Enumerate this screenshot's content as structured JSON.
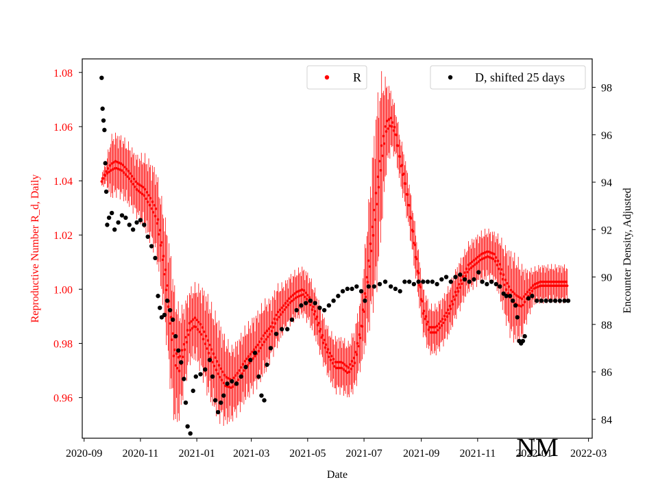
{
  "chart_data": {
    "type": "scatter",
    "xlabel": "Date",
    "ylabel_left": "Reproductive Number R_d, Daily",
    "ylabel_right": "Encounter Density, Adjusted",
    "x_range": [
      "2020-08-30",
      "2022-03-05"
    ],
    "y_left_range": [
      0.945,
      1.085
    ],
    "y_right_range": [
      83.2,
      99.2
    ],
    "x_ticks": [
      "2020-09",
      "2020-11",
      "2021-01",
      "2021-03",
      "2021-05",
      "2021-07",
      "2021-09",
      "2021-11",
      "2022-01",
      "2022-03"
    ],
    "y_left_ticks": [
      "0.96",
      "0.98",
      "1.00",
      "1.02",
      "1.04",
      "1.06",
      "1.08"
    ],
    "y_right_ticks": [
      "84",
      "86",
      "88",
      "90",
      "92",
      "94",
      "96",
      "98"
    ],
    "legend": [
      {
        "label": "R",
        "color": "#ff0000",
        "placement": "upper-center"
      },
      {
        "label": "D, shifted 25 days",
        "color": "#000000",
        "placement": "upper-right"
      }
    ],
    "annotation": "NM",
    "series_R": {
      "name": "R",
      "color": "#ff0000",
      "axis": "left",
      "points": [
        [
          "2020-09-20",
          1.04,
          0.002
        ],
        [
          "2020-09-25",
          1.043,
          0.004
        ],
        [
          "2020-09-30",
          1.045,
          0.01
        ],
        [
          "2020-10-05",
          1.046,
          0.01
        ],
        [
          "2020-10-12",
          1.045,
          0.01
        ],
        [
          "2020-10-20",
          1.042,
          0.01
        ],
        [
          "2020-10-28",
          1.038,
          0.01
        ],
        [
          "2020-11-05",
          1.036,
          0.012
        ],
        [
          "2020-11-12",
          1.032,
          0.013
        ],
        [
          "2020-11-18",
          1.028,
          0.014
        ],
        [
          "2020-11-23",
          1.018,
          0.015
        ],
        [
          "2020-11-28",
          1.005,
          0.018
        ],
        [
          "2020-12-03",
          0.99,
          0.022
        ],
        [
          "2020-12-08",
          0.975,
          0.022
        ],
        [
          "2020-12-13",
          0.972,
          0.018
        ],
        [
          "2020-12-18",
          0.978,
          0.014
        ],
        [
          "2020-12-24",
          0.986,
          0.012
        ],
        [
          "2020-12-30",
          0.988,
          0.012
        ],
        [
          "2021-01-06",
          0.985,
          0.014
        ],
        [
          "2021-01-12",
          0.98,
          0.016
        ],
        [
          "2021-01-18",
          0.975,
          0.016
        ],
        [
          "2021-01-25",
          0.97,
          0.016
        ],
        [
          "2021-02-01",
          0.966,
          0.014
        ],
        [
          "2021-02-08",
          0.965,
          0.012
        ],
        [
          "2021-02-15",
          0.968,
          0.012
        ],
        [
          "2021-02-22",
          0.972,
          0.012
        ],
        [
          "2021-03-01",
          0.975,
          0.012
        ],
        [
          "2021-03-08",
          0.978,
          0.012
        ],
        [
          "2021-03-15",
          0.982,
          0.012
        ],
        [
          "2021-03-22",
          0.985,
          0.01
        ],
        [
          "2021-03-29",
          0.99,
          0.01
        ],
        [
          "2021-04-05",
          0.993,
          0.008
        ],
        [
          "2021-04-12",
          0.996,
          0.008
        ],
        [
          "2021-04-19",
          0.998,
          0.008
        ],
        [
          "2021-04-26",
          0.999,
          0.008
        ],
        [
          "2021-05-03",
          0.996,
          0.008
        ],
        [
          "2021-05-10",
          0.99,
          0.008
        ],
        [
          "2021-05-17",
          0.982,
          0.008
        ],
        [
          "2021-05-24",
          0.976,
          0.008
        ],
        [
          "2021-05-31",
          0.972,
          0.009
        ],
        [
          "2021-06-07",
          0.972,
          0.009
        ],
        [
          "2021-06-14",
          0.97,
          0.009
        ],
        [
          "2021-06-21",
          0.974,
          0.01
        ],
        [
          "2021-06-28",
          0.985,
          0.012
        ],
        [
          "2021-07-05",
          1.005,
          0.02
        ],
        [
          "2021-07-10",
          1.02,
          0.025
        ],
        [
          "2021-07-15",
          1.035,
          0.03
        ],
        [
          "2021-07-20",
          1.05,
          0.025
        ],
        [
          "2021-07-25",
          1.06,
          0.015
        ],
        [
          "2021-07-30",
          1.062,
          0.01
        ],
        [
          "2021-08-04",
          1.058,
          0.008
        ],
        [
          "2021-08-09",
          1.048,
          0.008
        ],
        [
          "2021-08-14",
          1.04,
          0.008
        ],
        [
          "2021-08-19",
          1.03,
          0.008
        ],
        [
          "2021-08-24",
          1.018,
          0.008
        ],
        [
          "2021-08-29",
          1.005,
          0.008
        ],
        [
          "2021-09-03",
          0.992,
          0.008
        ],
        [
          "2021-09-10",
          0.985,
          0.008
        ],
        [
          "2021-09-17",
          0.985,
          0.008
        ],
        [
          "2021-09-24",
          0.988,
          0.008
        ],
        [
          "2021-10-01",
          0.992,
          0.008
        ],
        [
          "2021-10-08",
          0.998,
          0.008
        ],
        [
          "2021-10-15",
          1.003,
          0.008
        ],
        [
          "2021-10-22",
          1.008,
          0.008
        ],
        [
          "2021-10-29",
          1.01,
          0.008
        ],
        [
          "2021-11-05",
          1.012,
          0.008
        ],
        [
          "2021-11-12",
          1.013,
          0.008
        ],
        [
          "2021-11-19",
          1.012,
          0.008
        ],
        [
          "2021-11-25",
          1.008,
          0.01
        ],
        [
          "2021-12-01",
          1.002,
          0.012
        ],
        [
          "2021-12-07",
          0.998,
          0.014
        ],
        [
          "2021-12-13",
          0.996,
          0.014
        ],
        [
          "2021-12-19",
          0.995,
          0.012
        ],
        [
          "2021-12-25",
          0.998,
          0.008
        ],
        [
          "2022-01-01",
          1.001,
          0.006
        ],
        [
          "2022-01-08",
          1.002,
          0.006
        ],
        [
          "2022-01-15",
          1.002,
          0.006
        ],
        [
          "2022-01-22",
          1.002,
          0.006
        ],
        [
          "2022-02-01",
          1.002,
          0.006
        ],
        [
          "2022-02-06",
          1.002,
          0.006
        ]
      ]
    },
    "series_D": {
      "name": "D, shifted 25 days",
      "color": "#000000",
      "axis": "right",
      "points": [
        [
          "2020-09-20",
          98.4
        ],
        [
          "2020-09-21",
          97.1
        ],
        [
          "2020-09-22",
          96.6
        ],
        [
          "2020-09-23",
          96.2
        ],
        [
          "2020-09-24",
          94.8
        ],
        [
          "2020-09-25",
          93.6
        ],
        [
          "2020-09-26",
          92.2
        ],
        [
          "2020-09-28",
          92.5
        ],
        [
          "2020-10-01",
          92.7
        ],
        [
          "2020-10-04",
          92.0
        ],
        [
          "2020-10-08",
          92.3
        ],
        [
          "2020-10-12",
          92.6
        ],
        [
          "2020-10-16",
          92.5
        ],
        [
          "2020-10-20",
          92.2
        ],
        [
          "2020-10-24",
          92.0
        ],
        [
          "2020-10-28",
          92.3
        ],
        [
          "2020-11-01",
          92.4
        ],
        [
          "2020-11-05",
          92.2
        ],
        [
          "2020-11-09",
          91.7
        ],
        [
          "2020-11-13",
          91.3
        ],
        [
          "2020-11-17",
          90.8
        ],
        [
          "2020-11-20",
          89.2
        ],
        [
          "2020-11-22",
          88.7
        ],
        [
          "2020-11-24",
          88.3
        ],
        [
          "2020-11-27",
          88.4
        ],
        [
          "2020-11-30",
          89.0
        ],
        [
          "2020-12-03",
          88.6
        ],
        [
          "2020-12-06",
          88.2
        ],
        [
          "2020-12-09",
          87.5
        ],
        [
          "2020-12-12",
          86.9
        ],
        [
          "2020-12-15",
          86.4
        ],
        [
          "2020-12-18",
          85.7
        ],
        [
          "2020-12-20",
          84.7
        ],
        [
          "2020-12-22",
          83.7
        ],
        [
          "2020-12-25",
          83.4
        ],
        [
          "2020-12-28",
          85.2
        ],
        [
          "2020-12-31",
          85.8
        ],
        [
          "2021-01-05",
          85.9
        ],
        [
          "2021-01-10",
          86.1
        ],
        [
          "2021-01-15",
          86.5
        ],
        [
          "2021-01-18",
          85.8
        ],
        [
          "2021-01-21",
          84.8
        ],
        [
          "2021-01-24",
          84.3
        ],
        [
          "2021-01-27",
          84.7
        ],
        [
          "2021-01-30",
          85.0
        ],
        [
          "2021-02-03",
          85.5
        ],
        [
          "2021-02-08",
          85.6
        ],
        [
          "2021-02-13",
          85.5
        ],
        [
          "2021-02-18",
          85.8
        ],
        [
          "2021-02-23",
          86.2
        ],
        [
          "2021-02-28",
          86.5
        ],
        [
          "2021-03-05",
          86.8
        ],
        [
          "2021-03-09",
          85.8
        ],
        [
          "2021-03-12",
          85.0
        ],
        [
          "2021-03-15",
          84.8
        ],
        [
          "2021-03-18",
          86.3
        ],
        [
          "2021-03-22",
          87.0
        ],
        [
          "2021-03-28",
          87.6
        ],
        [
          "2021-04-03",
          87.8
        ],
        [
          "2021-04-09",
          87.8
        ],
        [
          "2021-04-14",
          88.2
        ],
        [
          "2021-04-19",
          88.6
        ],
        [
          "2021-04-24",
          88.8
        ],
        [
          "2021-04-29",
          88.9
        ],
        [
          "2021-05-04",
          89.0
        ],
        [
          "2021-05-09",
          88.9
        ],
        [
          "2021-05-14",
          88.7
        ],
        [
          "2021-05-19",
          88.6
        ],
        [
          "2021-05-24",
          88.8
        ],
        [
          "2021-05-29",
          89.0
        ],
        [
          "2021-06-03",
          89.2
        ],
        [
          "2021-06-08",
          89.4
        ],
        [
          "2021-06-13",
          89.5
        ],
        [
          "2021-06-18",
          89.5
        ],
        [
          "2021-06-23",
          89.6
        ],
        [
          "2021-06-28",
          89.4
        ],
        [
          "2021-07-02",
          89.0
        ],
        [
          "2021-07-06",
          89.6
        ],
        [
          "2021-07-12",
          89.6
        ],
        [
          "2021-07-18",
          89.7
        ],
        [
          "2021-07-24",
          89.8
        ],
        [
          "2021-07-30",
          89.6
        ],
        [
          "2021-08-04",
          89.5
        ],
        [
          "2021-08-09",
          89.4
        ],
        [
          "2021-08-14",
          89.8
        ],
        [
          "2021-08-19",
          89.8
        ],
        [
          "2021-08-24",
          89.7
        ],
        [
          "2021-08-29",
          89.8
        ],
        [
          "2021-09-03",
          89.8
        ],
        [
          "2021-09-08",
          89.8
        ],
        [
          "2021-09-13",
          89.8
        ],
        [
          "2021-09-18",
          89.7
        ],
        [
          "2021-09-23",
          89.9
        ],
        [
          "2021-09-28",
          90.0
        ],
        [
          "2021-10-03",
          89.8
        ],
        [
          "2021-10-08",
          90.0
        ],
        [
          "2021-10-13",
          90.1
        ],
        [
          "2021-10-18",
          89.9
        ],
        [
          "2021-10-23",
          89.8
        ],
        [
          "2021-10-28",
          89.9
        ],
        [
          "2021-11-02",
          90.2
        ],
        [
          "2021-11-06",
          89.8
        ],
        [
          "2021-11-11",
          89.7
        ],
        [
          "2021-11-16",
          89.8
        ],
        [
          "2021-11-21",
          89.7
        ],
        [
          "2021-11-25",
          89.6
        ],
        [
          "2021-11-29",
          89.3
        ],
        [
          "2021-12-02",
          89.2
        ],
        [
          "2021-12-06",
          89.2
        ],
        [
          "2021-12-09",
          89.0
        ],
        [
          "2021-12-12",
          88.8
        ],
        [
          "2021-12-14",
          88.3
        ],
        [
          "2021-12-16",
          87.3
        ],
        [
          "2021-12-18",
          87.2
        ],
        [
          "2021-12-20",
          87.3
        ],
        [
          "2021-12-22",
          87.5
        ],
        [
          "2021-12-26",
          89.1
        ],
        [
          "2021-12-30",
          89.2
        ],
        [
          "2022-01-04",
          89.0
        ],
        [
          "2022-01-09",
          89.0
        ],
        [
          "2022-01-14",
          89.0
        ],
        [
          "2022-01-19",
          89.0
        ],
        [
          "2022-01-24",
          89.0
        ],
        [
          "2022-01-29",
          89.0
        ],
        [
          "2022-02-03",
          89.0
        ],
        [
          "2022-02-07",
          89.0
        ]
      ]
    }
  }
}
